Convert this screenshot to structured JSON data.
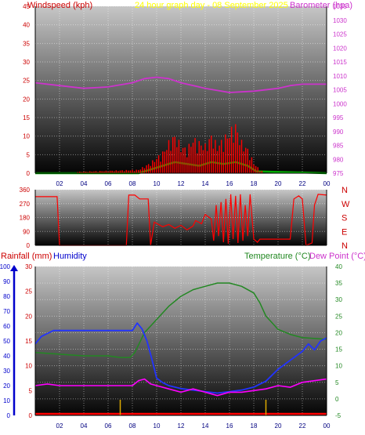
{
  "header": {
    "wind_label": "Windspeed (kph)",
    "title": "24 hour graph day - 08 September 2025",
    "baro_label": "Barometer (hpa)"
  },
  "lower_header": {
    "rain_label": "Rainfall (mm)",
    "hum_label": "Humidity",
    "temp_label": "Temperature (°C)",
    "dew_label": "Dew Point (°C)"
  },
  "colors": {
    "wind": "#ff0000",
    "gust": "#ff0000",
    "baro": "#cc33cc",
    "title": "#ffff00",
    "humidity": "#0000cc",
    "temperature": "#228822",
    "dewpoint": "#ff00ff",
    "rain": "#ff0000"
  },
  "chart_data": [
    {
      "type": "line",
      "name": "wind-barometer",
      "x": [
        "02",
        "04",
        "06",
        "08",
        "10",
        "12",
        "14",
        "16",
        "18",
        "20",
        "22",
        "00"
      ],
      "wind_ticks": [
        "0",
        "5",
        "10",
        "15",
        "20",
        "25",
        "30",
        "35",
        "40",
        "45"
      ],
      "baro_ticks": [
        "975",
        "980",
        "985",
        "990",
        "995",
        "1000",
        "1005",
        "1010",
        "1015",
        "1020",
        "1025",
        "1030",
        "1035"
      ],
      "wind_ylim": [
        0,
        45
      ],
      "baro_ylim": [
        975,
        1035
      ],
      "series": [
        {
          "key": "barometer",
          "axis": "baro",
          "points": [
            [
              0,
              1007.5
            ],
            [
              2,
              1006.5
            ],
            [
              4,
              1005.5
            ],
            [
              6,
              1006
            ],
            [
              8,
              1007.5
            ],
            [
              9,
              1009
            ],
            [
              10,
              1009.5
            ],
            [
              11,
              1009
            ],
            [
              12,
              1007.5
            ],
            [
              14,
              1005.5
            ],
            [
              16,
              1004
            ],
            [
              18,
              1004.5
            ],
            [
              20,
              1005.5
            ],
            [
              21,
              1006.5
            ],
            [
              22,
              1007
            ],
            [
              24,
              1007
            ]
          ]
        },
        {
          "key": "wind_avg",
          "axis": "wind",
          "points": [
            [
              0,
              0
            ],
            [
              8.5,
              0
            ],
            [
              9.5,
              1
            ],
            [
              10.5,
              2
            ],
            [
              11.5,
              3
            ],
            [
              12.5,
              2.5
            ],
            [
              13.5,
              2
            ],
            [
              14.5,
              3
            ],
            [
              15.5,
              2.5
            ],
            [
              16.5,
              3
            ],
            [
              17.5,
              2
            ],
            [
              18.2,
              0.5
            ],
            [
              24,
              0
            ]
          ]
        },
        {
          "key": "gust",
          "axis": "wind",
          "points": [
            [
              0,
              0
            ],
            [
              8.5,
              1
            ],
            [
              9.5,
              3
            ],
            [
              10.5,
              6
            ],
            [
              11,
              9
            ],
            [
              11.5,
              11
            ],
            [
              12,
              8
            ],
            [
              12.5,
              7
            ],
            [
              13,
              10
            ],
            [
              13.5,
              9
            ],
            [
              14,
              8
            ],
            [
              14.5,
              11
            ],
            [
              15,
              8
            ],
            [
              15.5,
              10
            ],
            [
              16,
              12
            ],
            [
              16.5,
              14
            ],
            [
              17,
              9
            ],
            [
              17.5,
              7
            ],
            [
              18,
              3
            ],
            [
              18.5,
              1
            ],
            [
              19,
              0
            ],
            [
              24,
              0
            ]
          ]
        }
      ]
    },
    {
      "type": "line",
      "name": "wind-direction",
      "y_ticks": [
        "0",
        "90",
        "180",
        "270",
        "360"
      ],
      "compass": [
        "N",
        "W",
        "S",
        "E",
        "N"
      ],
      "ylim": [
        0,
        360
      ],
      "series": [
        {
          "key": "direction",
          "points": [
            [
              0,
              315
            ],
            [
              1.8,
              315
            ],
            [
              2,
              0
            ],
            [
              7.5,
              0
            ],
            [
              7.7,
              325
            ],
            [
              8.2,
              325
            ],
            [
              8.6,
              300
            ],
            [
              9.3,
              300
            ],
            [
              9.5,
              0
            ],
            [
              9.8,
              150
            ],
            [
              10.5,
              120
            ],
            [
              11,
              135
            ],
            [
              11.5,
              110
            ],
            [
              12,
              130
            ],
            [
              12.5,
              100
            ],
            [
              13,
              125
            ],
            [
              13.2,
              160
            ],
            [
              13.7,
              140
            ],
            [
              14,
              200
            ],
            [
              14.5,
              170
            ],
            [
              14.7,
              30
            ],
            [
              14.9,
              260
            ],
            [
              15.1,
              60
            ],
            [
              15.3,
              280
            ],
            [
              15.5,
              20
            ],
            [
              15.7,
              300
            ],
            [
              15.9,
              10
            ],
            [
              16.1,
              330
            ],
            [
              16.3,
              40
            ],
            [
              16.5,
              320
            ],
            [
              16.7,
              15
            ],
            [
              16.9,
              330
            ],
            [
              17.1,
              30
            ],
            [
              17.3,
              260
            ],
            [
              17.5,
              60
            ],
            [
              17.7,
              330
            ],
            [
              18,
              40
            ],
            [
              18.3,
              20
            ],
            [
              18.5,
              40
            ],
            [
              21,
              40
            ],
            [
              21.3,
              300
            ],
            [
              21.7,
              320
            ],
            [
              22,
              300
            ],
            [
              22.3,
              0
            ],
            [
              22.8,
              15
            ],
            [
              23,
              260
            ],
            [
              23.3,
              330
            ],
            [
              24,
              325
            ]
          ]
        }
      ]
    },
    {
      "type": "line",
      "name": "rain-humidity-temperature",
      "x": [
        "02",
        "04",
        "06",
        "08",
        "10",
        "12",
        "14",
        "16",
        "18",
        "20",
        "22",
        "00"
      ],
      "humidity_ticks": [
        "0",
        "10",
        "20",
        "30",
        "40",
        "50",
        "60",
        "70",
        "80",
        "90",
        "100"
      ],
      "rain_ticks": [
        "0",
        "5",
        "10",
        "15",
        "20",
        "25",
        "30"
      ],
      "temp_ticks": [
        "-5",
        "0",
        "5",
        "10",
        "15",
        "20",
        "25",
        "30",
        "35",
        "40"
      ],
      "humidity_ylim": [
        0,
        100
      ],
      "rain_ylim": [
        0,
        30
      ],
      "temp_ylim": [
        -5,
        40
      ],
      "series": [
        {
          "key": "temperature",
          "axis": "temp",
          "points": [
            [
              0,
              14
            ],
            [
              2,
              13.5
            ],
            [
              4,
              13
            ],
            [
              6,
              13
            ],
            [
              7,
              12.5
            ],
            [
              7.8,
              12.5
            ],
            [
              8.2,
              14
            ],
            [
              8.6,
              17
            ],
            [
              9,
              20
            ],
            [
              10,
              24
            ],
            [
              11,
              28
            ],
            [
              12,
              31
            ],
            [
              13,
              33
            ],
            [
              14,
              34
            ],
            [
              15,
              35
            ],
            [
              16,
              35
            ],
            [
              17,
              34
            ],
            [
              18,
              32
            ],
            [
              18.5,
              29
            ],
            [
              19,
              25
            ],
            [
              19.5,
              23
            ],
            [
              20,
              21
            ],
            [
              21,
              19.5
            ],
            [
              22,
              18.5
            ],
            [
              24,
              18
            ]
          ]
        },
        {
          "key": "humidity",
          "axis": "humidity",
          "points": [
            [
              0,
              48
            ],
            [
              0.5,
              53
            ],
            [
              1,
              55
            ],
            [
              1.5,
              57
            ],
            [
              2,
              57
            ],
            [
              8,
              57
            ],
            [
              8.4,
              62
            ],
            [
              8.8,
              58
            ],
            [
              9.2,
              50
            ],
            [
              9.6,
              38
            ],
            [
              10,
              25
            ],
            [
              10.5,
              22
            ],
            [
              11,
              20
            ],
            [
              12,
              18
            ],
            [
              13,
              17
            ],
            [
              14,
              16
            ],
            [
              15,
              15
            ],
            [
              16,
              16
            ],
            [
              17,
              17
            ],
            [
              18,
              19
            ],
            [
              19,
              23
            ],
            [
              20,
              31
            ],
            [
              21,
              37
            ],
            [
              22,
              43
            ],
            [
              22.5,
              48
            ],
            [
              23,
              44
            ],
            [
              23.5,
              50
            ],
            [
              24,
              52
            ]
          ]
        },
        {
          "key": "dewpoint",
          "axis": "temp",
          "points": [
            [
              0,
              4
            ],
            [
              1,
              4.5
            ],
            [
              2,
              4
            ],
            [
              8,
              4
            ],
            [
              8.5,
              5.5
            ],
            [
              9,
              6
            ],
            [
              9.5,
              4.5
            ],
            [
              10,
              4
            ],
            [
              11,
              3
            ],
            [
              12,
              2
            ],
            [
              13,
              3
            ],
            [
              14,
              2
            ],
            [
              15,
              1
            ],
            [
              16,
              2
            ],
            [
              17,
              2
            ],
            [
              18,
              2.5
            ],
            [
              19,
              3
            ],
            [
              20,
              4
            ],
            [
              21,
              3.5
            ],
            [
              22,
              5
            ],
            [
              23,
              5.5
            ],
            [
              24,
              6
            ]
          ]
        },
        {
          "key": "rain_ticks_marks",
          "axis": "rain",
          "points": [
            [
              7,
              0
            ],
            [
              19,
              0
            ]
          ]
        }
      ]
    }
  ]
}
